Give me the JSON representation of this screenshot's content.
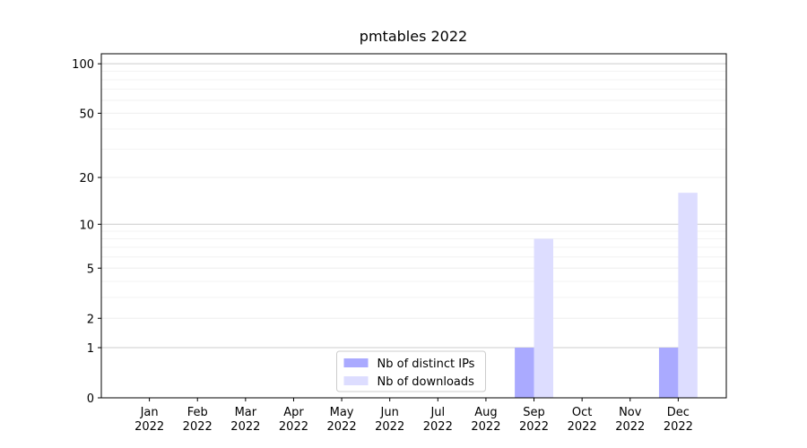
{
  "chart_data": {
    "type": "bar",
    "title": "pmtables 2022",
    "categories": [
      "Jan\n2022",
      "Feb\n2022",
      "Mar\n2022",
      "Apr\n2022",
      "May\n2022",
      "Jun\n2022",
      "Jul\n2022",
      "Aug\n2022",
      "Sep\n2022",
      "Oct\n2022",
      "Nov\n2022",
      "Dec\n2022"
    ],
    "series": [
      {
        "name": "Nb of distinct IPs",
        "color": "#aaaaff",
        "values": [
          0,
          0,
          0,
          0,
          0,
          0,
          0,
          0,
          1,
          0,
          0,
          1
        ]
      },
      {
        "name": "Nb of downloads",
        "color": "#ddddff",
        "values": [
          0,
          0,
          0,
          0,
          0,
          0,
          0,
          0,
          8,
          0,
          0,
          16
        ]
      }
    ],
    "yscale": "log1p",
    "ylim": [
      0,
      115
    ],
    "yticks": [
      0,
      1,
      2,
      5,
      10,
      20,
      50,
      100
    ],
    "yminorticks": [
      3,
      4,
      6,
      7,
      8,
      9,
      30,
      40,
      60,
      70,
      80,
      90
    ],
    "grid": true,
    "legend": "lower center"
  }
}
